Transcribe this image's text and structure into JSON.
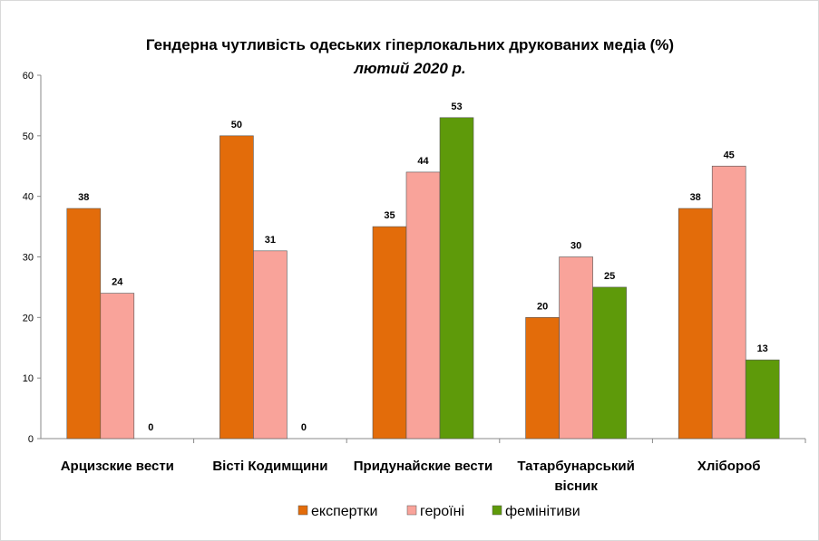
{
  "chart_data": {
    "type": "bar",
    "title": "Гендерна чутливість одеських гіперлокальних друкованих медіа (%)",
    "subtitle": "лютий 2020 р.",
    "xlabel": "",
    "ylabel": "",
    "ylim": [
      0,
      60
    ],
    "yticks": [
      "0",
      "10",
      "20",
      "30",
      "40",
      "50",
      "60"
    ],
    "grid": false,
    "legend_position": "bottom",
    "categories": [
      "Арцизские вести",
      "Вісті Кодимщини",
      "Придунайские вести",
      "Татарбунарський вісник",
      "Хлібороб"
    ],
    "series": [
      {
        "name": "експертки",
        "color": "#E36C0A",
        "values": [
          38,
          50,
          35,
          20,
          38
        ]
      },
      {
        "name": "героїні",
        "color": "#F9A39A",
        "values": [
          24,
          31,
          44,
          30,
          45
        ]
      },
      {
        "name": "фемінітиви",
        "color": "#5E9A0A",
        "values": [
          0,
          0,
          53,
          25,
          13
        ]
      }
    ]
  }
}
